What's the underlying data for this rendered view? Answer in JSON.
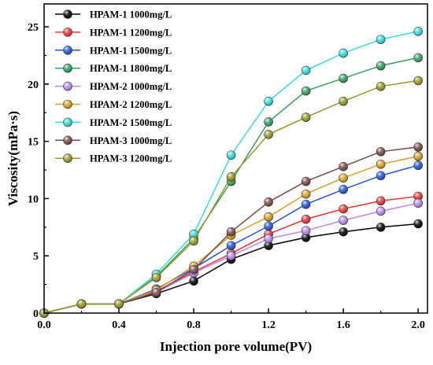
{
  "chart_data": {
    "type": "line",
    "title": "",
    "xlabel": "Injection pore volume(PV)",
    "ylabel": "Viscosity(mPa·s)",
    "xlim": [
      0.0,
      2.05
    ],
    "ylim": [
      0,
      27
    ],
    "xticks": [
      "0.0",
      "0.4",
      "0.8",
      "1.2",
      "1.6",
      "2.0"
    ],
    "yticks": [
      "0",
      "5",
      "10",
      "15",
      "20",
      "25"
    ],
    "grid": false,
    "legend_position": "top-left",
    "x": [
      0.0,
      0.2,
      0.4,
      0.6,
      0.8,
      1.0,
      1.2,
      1.4,
      1.6,
      1.8,
      2.0
    ],
    "series": [
      {
        "name": "HPAM-1 1000mg/L",
        "color": "#000000",
        "values": [
          0,
          0.8,
          0.8,
          1.7,
          2.8,
          4.7,
          5.9,
          6.6,
          7.1,
          7.5,
          7.8
        ]
      },
      {
        "name": "HPAM-1 1200mg/L",
        "color": "#ee3333",
        "values": [
          0,
          0.8,
          0.8,
          1.9,
          3.6,
          5.2,
          6.9,
          8.2,
          9.1,
          9.8,
          10.2
        ]
      },
      {
        "name": "HPAM-1 1500mg/L",
        "color": "#2255dd",
        "values": [
          0,
          0.8,
          0.8,
          2.1,
          3.9,
          5.9,
          7.6,
          9.5,
          10.8,
          12.0,
          12.9
        ]
      },
      {
        "name": "HPAM-1 1800mg/L",
        "color": "#33a060",
        "values": [
          0,
          0.8,
          0.8,
          3.2,
          6.5,
          11.5,
          16.7,
          19.4,
          20.5,
          21.6,
          22.3
        ]
      },
      {
        "name": "HPAM-2 1000mg/L",
        "color": "#bb88ee",
        "values": [
          0,
          0.8,
          0.8,
          1.8,
          3.5,
          5.0,
          6.5,
          7.2,
          8.1,
          8.9,
          9.6
        ]
      },
      {
        "name": "HPAM-2 1200mg/L",
        "color": "#dda022",
        "values": [
          0,
          0.8,
          0.8,
          2.0,
          4.1,
          6.8,
          8.4,
          10.4,
          11.8,
          13.0,
          13.7
        ]
      },
      {
        "name": "HPAM-2 1500mg/L",
        "color": "#33dddd",
        "values": [
          0,
          0.8,
          0.8,
          3.4,
          6.9,
          13.8,
          18.5,
          21.2,
          22.7,
          23.9,
          24.6
        ]
      },
      {
        "name": "HPAM-3 1000mg/L",
        "color": "#7a4a44",
        "values": [
          0,
          0.8,
          0.8,
          1.8,
          3.8,
          7.1,
          9.7,
          11.5,
          12.8,
          14.1,
          14.5
        ]
      },
      {
        "name": "HPAM-3 1200mg/L",
        "color": "#999922",
        "values": [
          0,
          0.8,
          0.8,
          3.1,
          6.3,
          11.9,
          15.6,
          17.1,
          18.5,
          19.8,
          20.3
        ]
      }
    ]
  }
}
